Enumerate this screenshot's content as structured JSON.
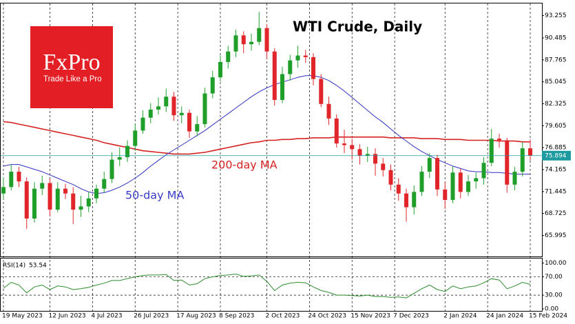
{
  "chart_data": {
    "type": "candlestick",
    "title": "WTI Crude, Daily",
    "logo": {
      "brand": "FxPro",
      "tagline": "Trade Like a Pro"
    },
    "x": [
      "2023-05-19",
      "2023-05-23",
      "2023-05-27",
      "2023-05-31",
      "2023-06-04",
      "2023-06-08",
      "2023-06-12",
      "2023-06-16",
      "2023-06-20",
      "2023-06-24",
      "2023-06-28",
      "2023-07-02",
      "2023-07-06",
      "2023-07-10",
      "2023-07-14",
      "2023-07-18",
      "2023-07-22",
      "2023-07-26",
      "2023-07-30",
      "2023-08-03",
      "2023-08-07",
      "2023-08-11",
      "2023-08-15",
      "2023-08-19",
      "2023-08-23",
      "2023-08-27",
      "2023-08-31",
      "2023-09-04",
      "2023-09-08",
      "2023-09-12",
      "2023-09-16",
      "2023-09-20",
      "2023-09-24",
      "2023-09-28",
      "2023-10-02",
      "2023-10-06",
      "2023-10-10",
      "2023-10-14",
      "2023-10-18",
      "2023-10-22",
      "2023-10-26",
      "2023-10-30",
      "2023-11-03",
      "2023-11-07",
      "2023-11-11",
      "2023-11-15",
      "2023-11-19",
      "2023-11-23",
      "2023-11-27",
      "2023-12-01",
      "2023-12-05",
      "2023-12-09",
      "2023-12-13",
      "2023-12-17",
      "2023-12-21",
      "2023-12-25",
      "2023-12-29",
      "2024-01-02",
      "2024-01-06",
      "2024-01-10",
      "2024-01-14",
      "2024-01-18",
      "2024-01-22",
      "2024-01-26",
      "2024-01-30",
      "2024-02-03",
      "2024-02-07",
      "2024-02-11",
      "2024-02-15"
    ],
    "open": [
      71.2,
      72.0,
      73.9,
      72.7,
      68.1,
      71.8,
      72.5,
      69.2,
      71.8,
      71.2,
      69.2,
      69.6,
      70.6,
      71.8,
      73.0,
      75.4,
      75.7,
      77.1,
      79.0,
      80.6,
      81.6,
      82.0,
      83.2,
      80.9,
      81.2,
      78.9,
      79.8,
      83.6,
      85.6,
      87.5,
      88.8,
      90.8,
      89.7,
      90.0,
      91.7,
      88.8,
      82.8,
      86.0,
      87.7,
      88.3,
      88.1,
      85.4,
      82.3,
      80.5,
      77.4,
      77.2,
      76.7,
      75.9,
      76.1,
      74.9,
      74.1,
      72.3,
      71.2,
      69.5,
      71.4,
      73.9,
      75.6,
      71.7,
      70.4,
      73.8,
      71.4,
      72.7,
      73.1,
      75.0,
      78.0,
      77.8,
      72.3,
      73.9,
      76.8
    ],
    "high": [
      73.2,
      74.8,
      74.5,
      73.2,
      72.6,
      73.4,
      73.0,
      72.6,
      72.4,
      72.0,
      70.9,
      71.4,
      72.3,
      73.9,
      76.3,
      76.9,
      77.8,
      79.8,
      81.5,
      82.4,
      83.1,
      84.2,
      83.8,
      82.0,
      81.6,
      80.8,
      84.3,
      86.4,
      88.3,
      89.5,
      91.5,
      91.3,
      91.0,
      93.7,
      92.2,
      89.2,
      86.9,
      88.4,
      89.5,
      89.0,
      88.6,
      86.0,
      83.2,
      81.0,
      79.1,
      78.0,
      77.3,
      77.0,
      76.8,
      75.6,
      74.8,
      73.1,
      71.8,
      72.2,
      74.6,
      76.2,
      76.0,
      72.6,
      74.6,
      74.3,
      73.5,
      73.8,
      75.7,
      79.2,
      78.6,
      78.1,
      74.5,
      77.6,
      77.9
    ],
    "low": [
      70.5,
      71.6,
      72.0,
      66.8,
      67.6,
      71.0,
      68.4,
      68.9,
      70.5,
      67.4,
      68.3,
      68.9,
      70.0,
      71.3,
      72.5,
      74.6,
      75.1,
      76.5,
      78.6,
      79.9,
      81.0,
      81.3,
      80.2,
      79.9,
      78.1,
      78.3,
      79.4,
      83.0,
      85.1,
      86.7,
      88.1,
      88.6,
      88.9,
      89.6,
      87.9,
      82.1,
      82.4,
      85.2,
      86.8,
      87.4,
      84.6,
      81.9,
      79.7,
      76.9,
      76.2,
      75.4,
      74.8,
      75.1,
      73.4,
      73.3,
      71.6,
      70.3,
      67.7,
      68.6,
      70.9,
      73.1,
      70.9,
      69.3,
      70.0,
      70.6,
      70.9,
      71.8,
      72.3,
      74.6,
      76.9,
      71.3,
      71.6,
      73.3,
      75.3
    ],
    "close": [
      72.0,
      73.9,
      72.7,
      68.1,
      71.8,
      72.5,
      69.2,
      71.8,
      71.2,
      69.2,
      69.6,
      70.6,
      71.8,
      73.0,
      75.4,
      75.7,
      77.1,
      79.0,
      80.6,
      81.6,
      82.0,
      83.2,
      80.9,
      81.2,
      78.9,
      79.8,
      83.6,
      85.6,
      87.5,
      88.8,
      90.8,
      89.7,
      90.0,
      91.7,
      88.8,
      82.8,
      86.0,
      87.7,
      88.3,
      88.1,
      85.4,
      82.3,
      80.5,
      77.4,
      77.2,
      76.7,
      75.9,
      76.1,
      74.9,
      74.1,
      72.3,
      71.2,
      69.5,
      71.4,
      73.9,
      75.6,
      71.7,
      70.4,
      73.8,
      71.4,
      72.7,
      73.1,
      75.0,
      78.0,
      77.8,
      72.3,
      73.9,
      76.8,
      75.894
    ],
    "up_color": "#1f9e2a",
    "down_color": "#e0262a",
    "overlays": [
      {
        "name": "200-day MA",
        "color": "#d62020",
        "values": [
          80.1,
          80.0,
          79.8,
          79.6,
          79.4,
          79.2,
          79.0,
          78.8,
          78.6,
          78.4,
          78.2,
          78.0,
          77.8,
          77.5,
          77.3,
          77.1,
          76.9,
          76.7,
          76.5,
          76.4,
          76.3,
          76.2,
          76.1,
          76.1,
          76.1,
          76.2,
          76.3,
          76.5,
          76.7,
          76.9,
          77.1,
          77.3,
          77.5,
          77.6,
          77.8,
          77.8,
          77.9,
          77.9,
          78.0,
          78.0,
          78.1,
          78.1,
          78.1,
          78.2,
          78.2,
          78.2,
          78.2,
          78.2,
          78.2,
          78.2,
          78.1,
          78.1,
          78.1,
          78.1,
          78.0,
          78.0,
          78.0,
          77.9,
          77.9,
          77.9,
          77.8,
          77.8,
          77.8,
          77.8,
          77.7,
          77.7,
          77.7,
          77.6,
          77.6
        ]
      },
      {
        "name": "50-day MA",
        "color": "#2f2fc0",
        "values": [
          74.6,
          74.8,
          74.8,
          74.5,
          74.2,
          73.9,
          73.5,
          73.1,
          72.7,
          72.3,
          71.8,
          71.4,
          71.2,
          71.3,
          71.6,
          72.0,
          72.5,
          73.1,
          73.8,
          74.6,
          75.3,
          76.0,
          76.6,
          77.2,
          77.8,
          78.4,
          79.0,
          79.7,
          80.4,
          81.1,
          81.8,
          82.5,
          83.2,
          83.8,
          84.3,
          84.7,
          85.0,
          85.3,
          85.6,
          85.8,
          85.8,
          85.6,
          85.2,
          84.6,
          83.9,
          83.1,
          82.3,
          81.5,
          80.7,
          80.0,
          79.2,
          78.4,
          77.7,
          77.0,
          76.4,
          75.9,
          75.4,
          75.0,
          74.6,
          74.3,
          74.0,
          73.9,
          73.9,
          73.8,
          73.8,
          73.7,
          73.6,
          73.6,
          73.6
        ]
      }
    ],
    "price_line_color": "#1c9aa0",
    "xlim": [
      "2023-05-19",
      "2024-02-15"
    ],
    "xticks": [
      {
        "value": "2023-05-19",
        "label": "19 May 2023"
      },
      {
        "value": "2023-06-12",
        "label": "12 Jun 2023"
      },
      {
        "value": "2023-07-04",
        "label": "4 Jul 2023"
      },
      {
        "value": "2023-07-26",
        "label": "26 Jul 2023"
      },
      {
        "value": "2023-08-17",
        "label": "17 Aug 2023"
      },
      {
        "value": "2023-09-08",
        "label": "8 Sep 2023"
      },
      {
        "value": "2023-10-02",
        "label": "2 Oct 2023"
      },
      {
        "value": "2023-10-24",
        "label": "24 Oct 2023"
      },
      {
        "value": "2023-11-15",
        "label": "15 Nov 2023"
      },
      {
        "value": "2023-12-07",
        "label": "7 Dec 2023"
      },
      {
        "value": "2024-01-02",
        "label": "2 Jan 2024"
      },
      {
        "value": "2024-01-24",
        "label": "24 Jan 2024"
      },
      {
        "value": "2024-02-15",
        "label": "15 Feb 2024"
      }
    ],
    "ylim": [
      63.4,
      94.5
    ],
    "yticks": [
      93.255,
      90.485,
      87.765,
      85.045,
      82.325,
      79.605,
      76.885,
      74.165,
      71.445,
      68.725,
      65.995
    ],
    "rsi": {
      "label": "RSI(14)",
      "color": "#2a8a2a",
      "ylim": [
        -6,
        110
      ],
      "yticks": [
        {
          "value": 100,
          "label": "100.00"
        },
        {
          "value": 70,
          "label": "70.00"
        },
        {
          "value": 30,
          "label": "30.00"
        },
        {
          "value": 0,
          "label": "0.00"
        }
      ],
      "values": [
        45,
        58,
        52,
        35,
        48,
        52,
        42,
        50,
        48,
        42,
        44,
        47,
        52,
        56,
        62,
        62,
        66,
        70,
        73,
        74,
        74,
        75,
        62,
        63,
        52,
        55,
        66,
        70,
        73,
        74,
        76,
        71,
        72,
        74,
        60,
        40,
        52,
        56,
        58,
        57,
        48,
        40,
        36,
        30,
        30,
        29,
        28,
        30,
        27,
        27,
        25,
        26,
        24,
        34,
        44,
        52,
        42,
        38,
        50,
        44,
        48,
        50,
        57,
        66,
        63,
        44,
        50,
        58,
        53.54
      ]
    }
  }
}
